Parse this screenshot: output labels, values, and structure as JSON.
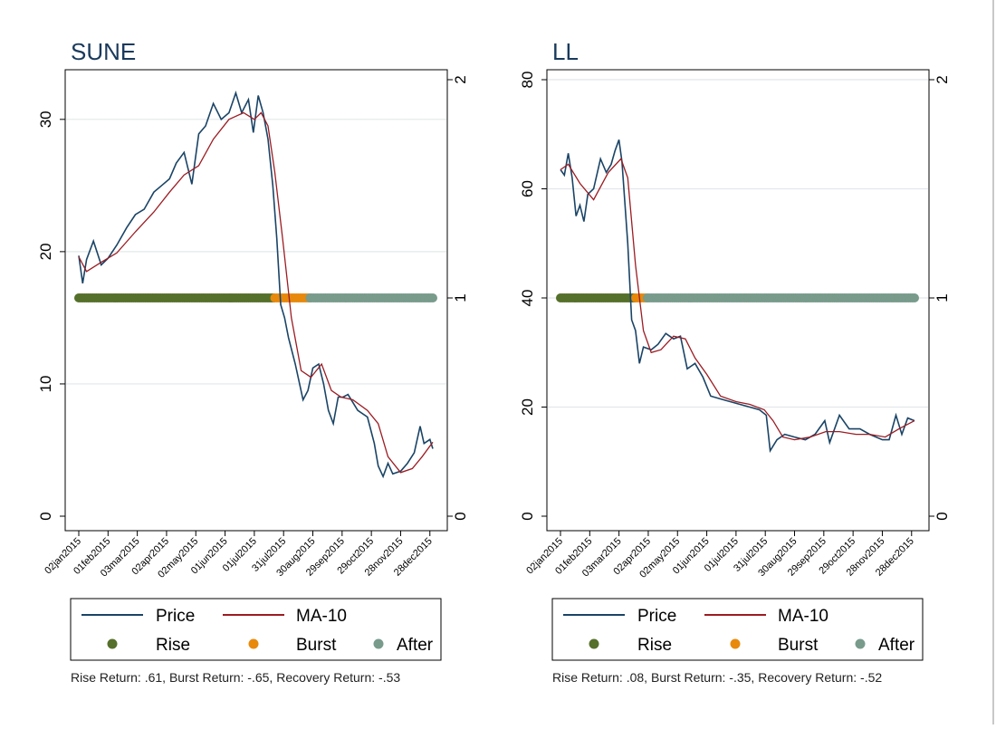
{
  "colors": {
    "price": "#1a4466",
    "ma": "#9b1c22",
    "rise": "#55702a",
    "burst": "#e8890c",
    "after": "#789b8c",
    "grid": "#e2e8ea"
  },
  "legend": {
    "price": "Price",
    "ma": "MA-10",
    "rise": "Rise",
    "burst": "Burst",
    "after": "After"
  },
  "x_ticks": [
    "02jan2015",
    "01feb2015",
    "03mar2015",
    "02apr2015",
    "02may2015",
    "01jun2015",
    "01jul2015",
    "31jul2015",
    "30aug2015",
    "29sep2015",
    "29oct2015",
    "28nov2015",
    "28dec2015"
  ],
  "chart_data": [
    {
      "type": "line",
      "title": "SUNE",
      "xlabel": "",
      "ylabel": "",
      "x_range": [
        "2015-01-02",
        "2015-12-31"
      ],
      "ylim": [
        0,
        33
      ],
      "y_ticks": [
        0,
        10,
        20,
        30
      ],
      "y2lim": [
        0,
        2
      ],
      "y2_ticks": [
        0,
        1,
        2
      ],
      "grid": true,
      "legend_position": "bottom",
      "series": [
        {
          "name": "Price",
          "x": [
            "2015-01-02",
            "2015-01-06",
            "2015-01-10",
            "2015-01-17",
            "2015-01-25",
            "2015-02-01",
            "2015-02-10",
            "2015-02-20",
            "2015-03-01",
            "2015-03-10",
            "2015-03-20",
            "2015-03-28",
            "2015-04-05",
            "2015-04-12",
            "2015-04-20",
            "2015-04-28",
            "2015-05-05",
            "2015-05-12",
            "2015-05-20",
            "2015-05-28",
            "2015-06-05",
            "2015-06-12",
            "2015-06-18",
            "2015-06-25",
            "2015-06-30",
            "2015-07-05",
            "2015-07-10",
            "2015-07-15",
            "2015-07-20",
            "2015-07-24",
            "2015-07-28",
            "2015-08-01",
            "2015-08-05",
            "2015-08-12",
            "2015-08-20",
            "2015-08-25",
            "2015-08-30",
            "2015-09-05",
            "2015-09-10",
            "2015-09-15",
            "2015-09-20",
            "2015-09-25",
            "2015-09-30",
            "2015-10-05",
            "2015-10-15",
            "2015-10-25",
            "2015-11-01",
            "2015-11-05",
            "2015-11-10",
            "2015-11-15",
            "2015-11-20",
            "2015-11-28",
            "2015-12-05",
            "2015-12-12",
            "2015-12-18",
            "2015-12-22",
            "2015-12-28",
            "2015-12-31"
          ],
          "values": [
            19.7,
            17.6,
            19.4,
            20.8,
            19.0,
            19.5,
            20.5,
            21.8,
            22.8,
            23.2,
            24.5,
            25.0,
            25.5,
            26.7,
            27.5,
            25.1,
            28.9,
            29.5,
            31.2,
            30.0,
            30.5,
            32.0,
            30.5,
            31.5,
            29.0,
            31.8,
            30.5,
            28.5,
            25.0,
            21.0,
            16.0,
            15.0,
            13.5,
            11.5,
            8.8,
            9.5,
            11.2,
            11.5,
            10.0,
            8.0,
            7.0,
            9.0,
            9.0,
            9.2,
            8.0,
            7.5,
            5.5,
            3.8,
            3.0,
            4.0,
            3.2,
            3.4,
            4.0,
            4.8,
            6.8,
            5.5,
            5.8,
            5.1
          ]
        },
        {
          "name": "MA-10",
          "x": [
            "2015-01-02",
            "2015-01-10",
            "2015-01-25",
            "2015-02-10",
            "2015-03-01",
            "2015-03-20",
            "2015-04-05",
            "2015-04-20",
            "2015-05-05",
            "2015-05-20",
            "2015-06-05",
            "2015-06-20",
            "2015-07-01",
            "2015-07-08",
            "2015-07-15",
            "2015-07-22",
            "2015-07-30",
            "2015-08-08",
            "2015-08-18",
            "2015-08-28",
            "2015-09-08",
            "2015-09-18",
            "2015-09-28",
            "2015-10-10",
            "2015-10-25",
            "2015-11-05",
            "2015-11-15",
            "2015-11-28",
            "2015-12-10",
            "2015-12-20",
            "2015-12-31"
          ],
          "values": [
            19.6,
            18.5,
            19.2,
            19.9,
            21.5,
            23.0,
            24.5,
            25.8,
            26.5,
            28.5,
            30.0,
            30.5,
            30.0,
            30.5,
            29.5,
            26.0,
            21.0,
            15.0,
            11.0,
            10.5,
            11.5,
            9.5,
            9.0,
            8.8,
            8.0,
            7.0,
            4.5,
            3.3,
            3.6,
            4.5,
            5.6
          ]
        }
      ],
      "phases": [
        {
          "name": "Rise",
          "start": "2015-01-02",
          "end": "2015-07-22"
        },
        {
          "name": "Burst",
          "start": "2015-07-22",
          "end": "2015-08-27"
        },
        {
          "name": "After",
          "start": "2015-08-27",
          "end": "2015-12-31"
        }
      ],
      "footer": "Rise Return: .61, Burst Return: -.65, Recovery Return: -.53"
    },
    {
      "type": "line",
      "title": "LL",
      "xlabel": "",
      "ylabel": "",
      "x_range": [
        "2015-01-02",
        "2015-12-31"
      ],
      "ylim": [
        0,
        80
      ],
      "y_ticks": [
        0,
        20,
        40,
        60,
        80
      ],
      "y2lim": [
        0,
        2
      ],
      "y2_ticks": [
        0,
        1,
        2
      ],
      "grid": true,
      "legend_position": "bottom",
      "series": [
        {
          "name": "Price",
          "x": [
            "2015-01-02",
            "2015-01-06",
            "2015-01-10",
            "2015-01-14",
            "2015-01-18",
            "2015-01-22",
            "2015-01-26",
            "2015-01-30",
            "2015-02-05",
            "2015-02-12",
            "2015-02-18",
            "2015-02-23",
            "2015-02-27",
            "2015-03-03",
            "2015-03-06",
            "2015-03-12",
            "2015-03-16",
            "2015-03-20",
            "2015-03-24",
            "2015-03-28",
            "2015-04-05",
            "2015-04-12",
            "2015-04-20",
            "2015-04-28",
            "2015-05-05",
            "2015-05-12",
            "2015-05-20",
            "2015-05-28",
            "2015-06-05",
            "2015-06-15",
            "2015-06-25",
            "2015-07-05",
            "2015-07-15",
            "2015-07-25",
            "2015-08-01",
            "2015-08-05",
            "2015-08-12",
            "2015-08-20",
            "2015-08-30",
            "2015-09-10",
            "2015-09-20",
            "2015-09-30",
            "2015-10-05",
            "2015-10-15",
            "2015-10-25",
            "2015-11-05",
            "2015-11-15",
            "2015-11-28",
            "2015-12-05",
            "2015-12-12",
            "2015-12-18",
            "2015-12-24",
            "2015-12-31"
          ],
          "values": [
            63.5,
            62.5,
            66.5,
            62.0,
            55.0,
            57.0,
            54.0,
            59.0,
            60.0,
            65.5,
            63.0,
            64.5,
            67.0,
            69.0,
            65.0,
            50.0,
            36.0,
            34.0,
            28.0,
            31.0,
            30.5,
            31.5,
            33.5,
            32.5,
            33.0,
            27.0,
            28.0,
            25.5,
            22.0,
            21.5,
            21.0,
            20.5,
            20.0,
            19.5,
            18.5,
            12.0,
            14.0,
            15.0,
            14.5,
            14.0,
            15.0,
            17.5,
            13.5,
            18.5,
            16.0,
            16.0,
            15.0,
            14.0,
            14.0,
            18.5,
            15.0,
            18.0,
            17.5
          ]
        },
        {
          "name": "MA-10",
          "x": [
            "2015-01-02",
            "2015-01-10",
            "2015-01-22",
            "2015-02-05",
            "2015-02-20",
            "2015-03-05",
            "2015-03-12",
            "2015-03-20",
            "2015-03-28",
            "2015-04-05",
            "2015-04-15",
            "2015-04-28",
            "2015-05-10",
            "2015-05-20",
            "2015-06-01",
            "2015-06-15",
            "2015-07-01",
            "2015-07-15",
            "2015-07-30",
            "2015-08-08",
            "2015-08-18",
            "2015-08-30",
            "2015-09-15",
            "2015-10-01",
            "2015-10-15",
            "2015-11-01",
            "2015-11-15",
            "2015-12-01",
            "2015-12-15",
            "2015-12-31"
          ],
          "values": [
            63.5,
            64.5,
            61.0,
            58.0,
            63.0,
            65.5,
            62.0,
            46.0,
            34.0,
            30.0,
            30.5,
            33.0,
            32.5,
            29.0,
            26.0,
            22.0,
            21.0,
            20.5,
            19.5,
            17.5,
            14.5,
            14.0,
            14.5,
            15.5,
            15.5,
            15.0,
            15.0,
            14.5,
            16.0,
            17.5
          ]
        }
      ],
      "phases": [
        {
          "name": "Rise",
          "start": "2015-01-02",
          "end": "2015-03-20"
        },
        {
          "name": "Burst",
          "start": "2015-03-20",
          "end": "2015-04-01"
        },
        {
          "name": "After",
          "start": "2015-04-01",
          "end": "2015-12-31"
        }
      ],
      "footer": "Rise Return: .08, Burst Return: -.35, Recovery Return: -.52"
    }
  ]
}
